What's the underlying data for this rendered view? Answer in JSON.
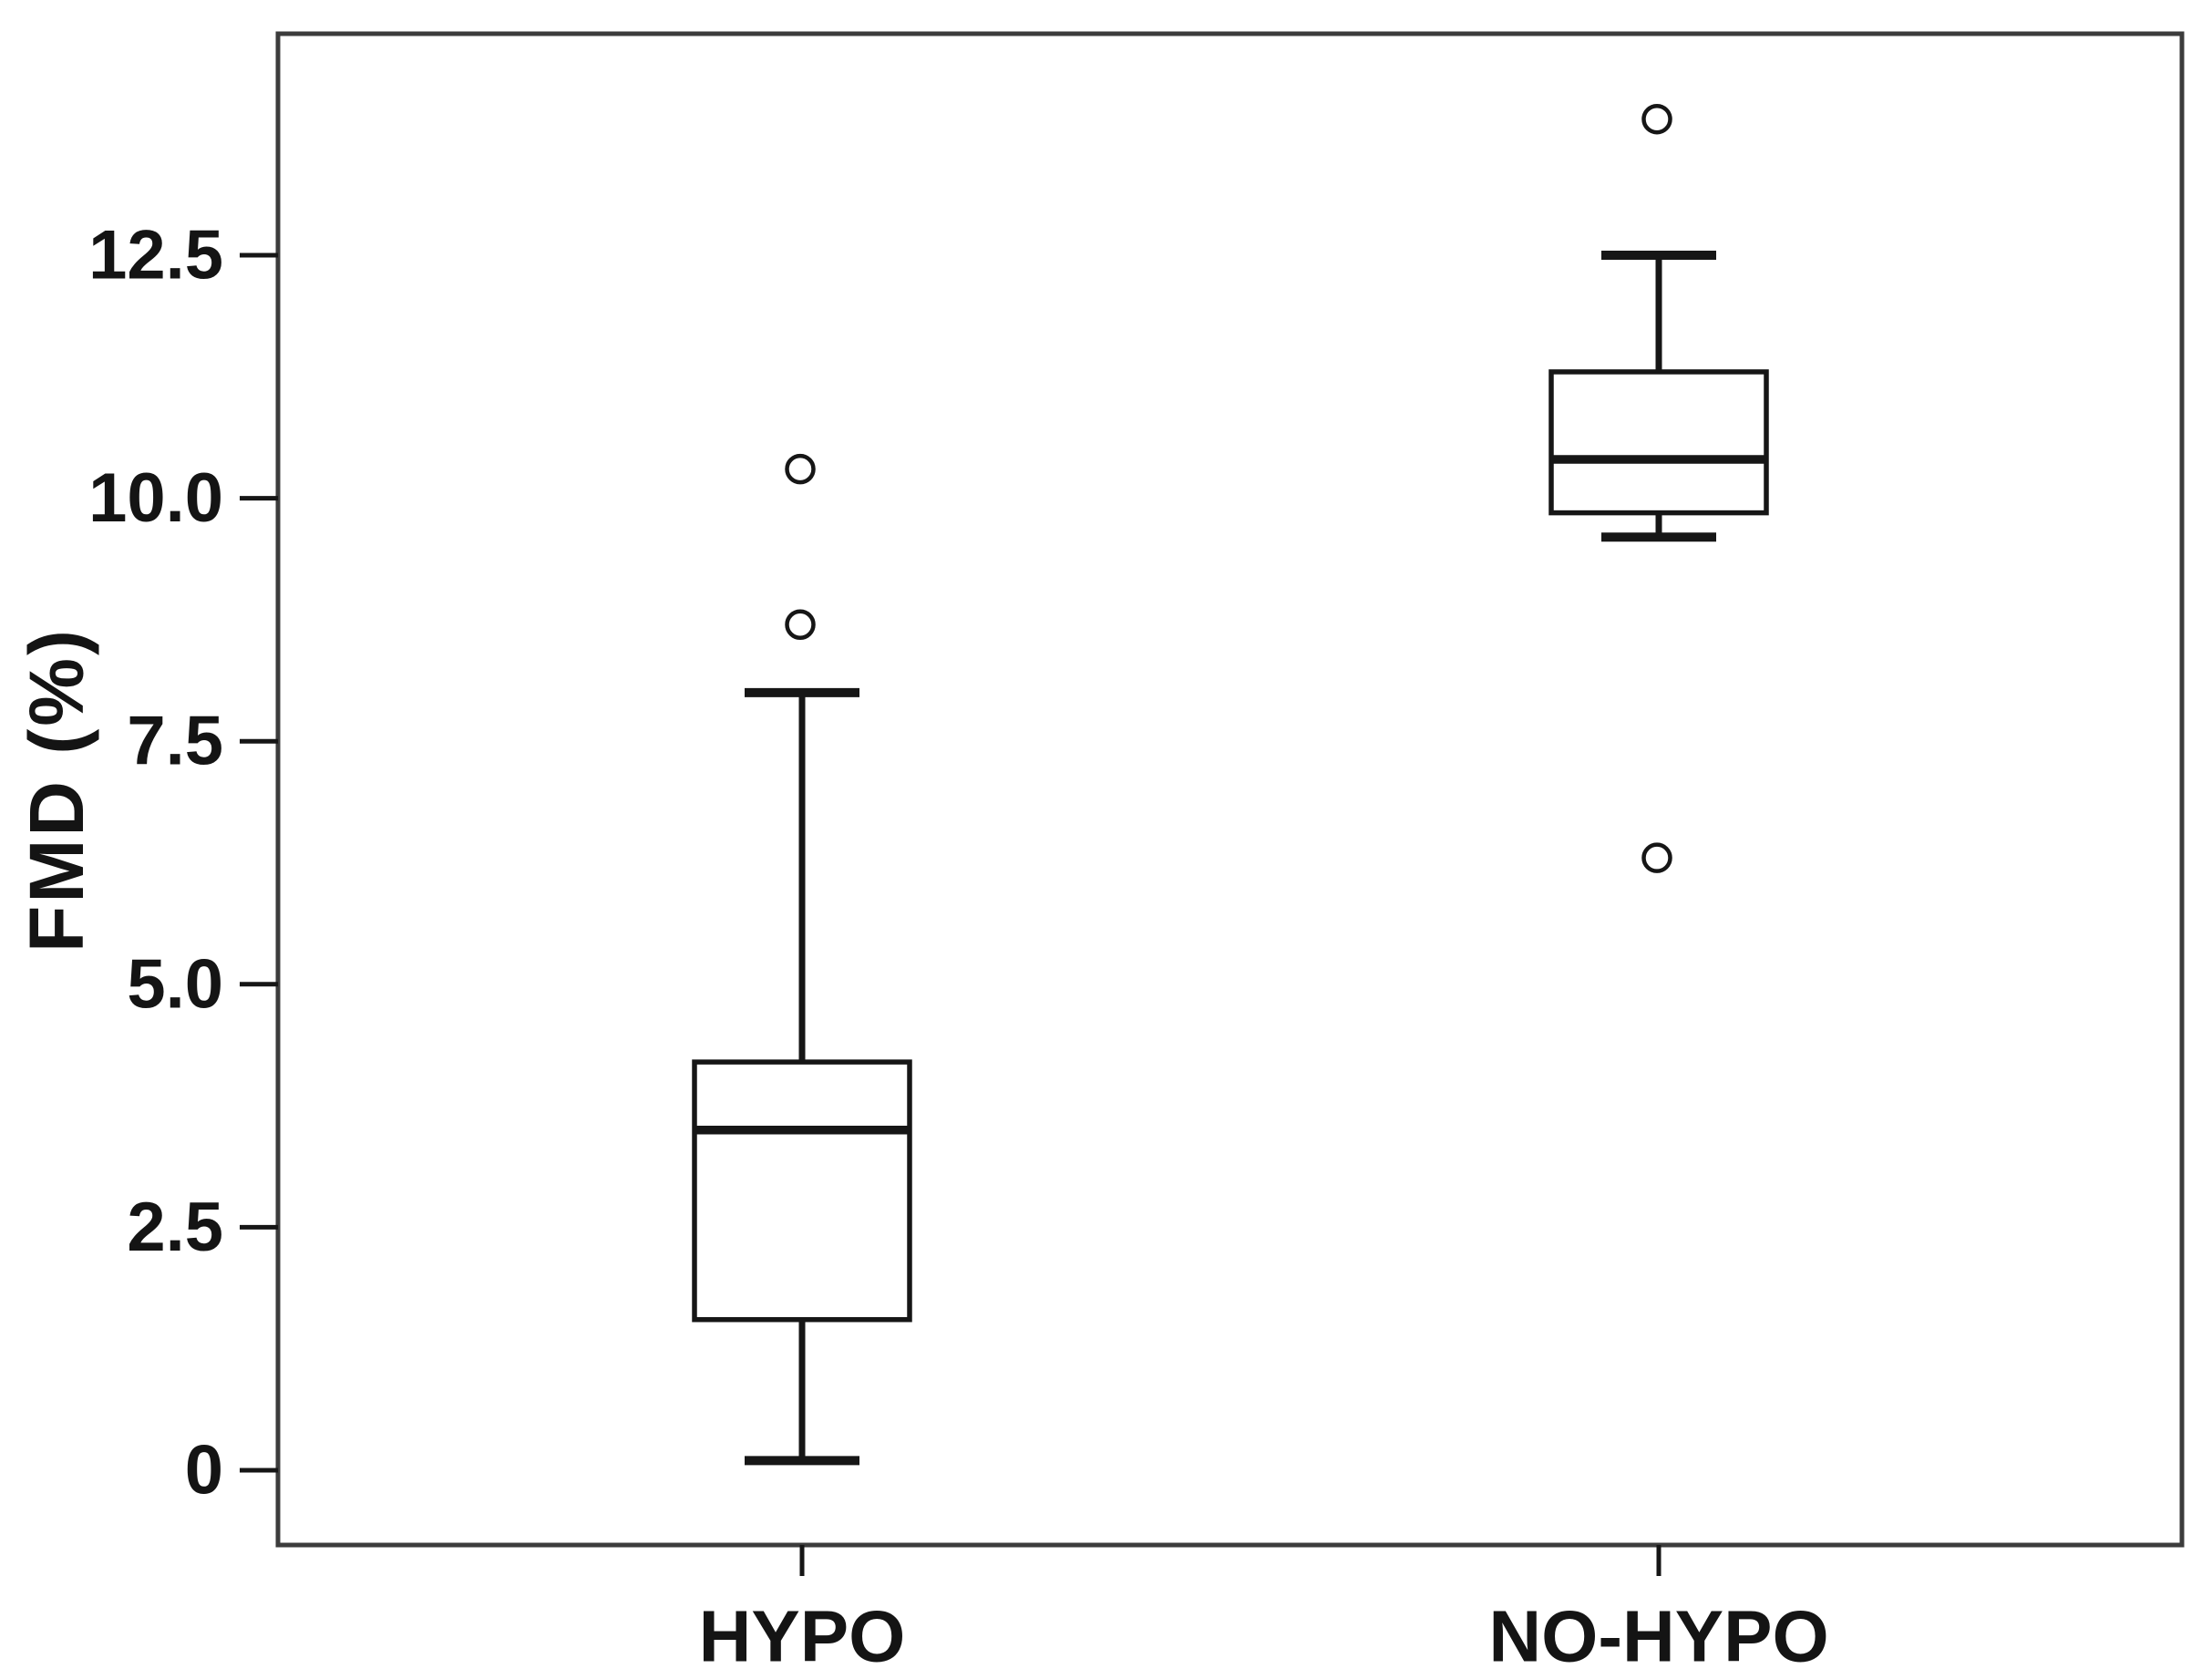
{
  "figure": {
    "background": "#ffffff",
    "frame_color": "#3c3c3c",
    "ink_color": "#161616"
  },
  "chart_data": {
    "type": "boxplot",
    "title": "",
    "xlabel": "",
    "ylabel": "FMD (%)",
    "categories": [
      "HYPO",
      "NO-HYPO"
    ],
    "y_axis": {
      "ticks": [
        0,
        2.5,
        5.0,
        7.5,
        10.0,
        12.5
      ],
      "tick_labels": [
        "0",
        "2.5",
        "5.0",
        "7.5",
        "10.0",
        "12.5"
      ],
      "ylim": [
        -0.8,
        14.8
      ],
      "grid": false
    },
    "series": [
      {
        "name": "HYPO",
        "whisker_low": 0.1,
        "q1": 1.55,
        "median": 3.5,
        "q3": 4.2,
        "whisker_high": 8.0,
        "outliers": [
          8.7,
          10.3
        ]
      },
      {
        "name": "NO-HYPO",
        "whisker_low": 9.6,
        "q1": 9.85,
        "median": 10.4,
        "q3": 11.3,
        "whisker_high": 12.5,
        "outliers": [
          6.3,
          13.9
        ]
      }
    ],
    "legend_position": "none"
  }
}
